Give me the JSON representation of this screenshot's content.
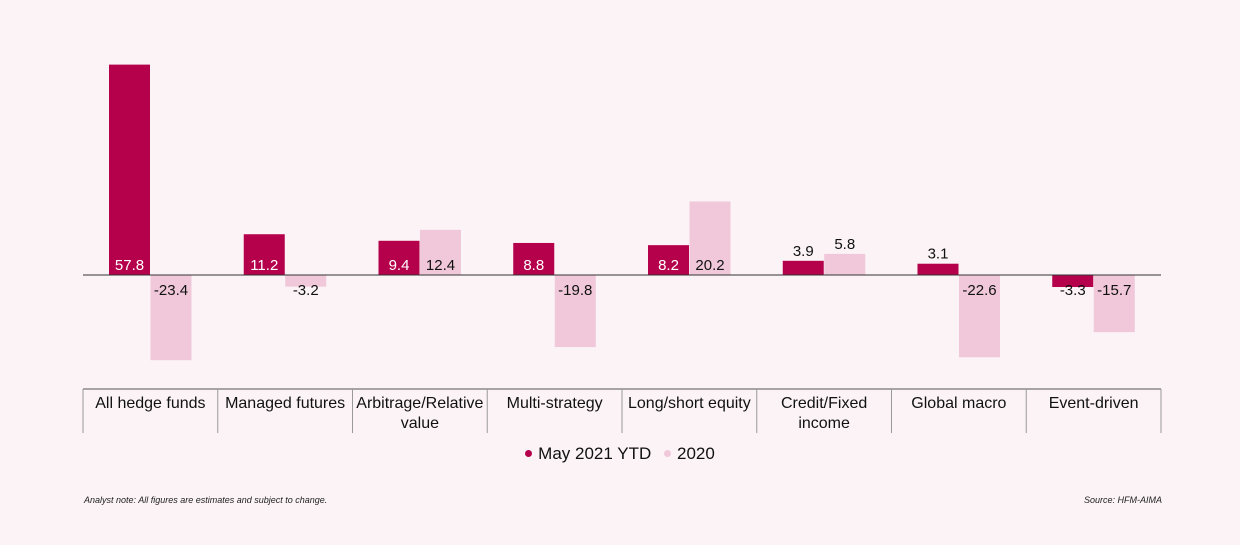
{
  "chart_data": {
    "type": "bar",
    "categories": [
      "All hedge funds",
      "Managed futures",
      "Arbitrage/Relative value",
      "Multi-strategy",
      "Long/short equity",
      "Credit/Fixed income",
      "Global macro",
      "Event-driven"
    ],
    "series": [
      {
        "name": "May 2021 YTD",
        "color": "#b5004b",
        "values": [
          57.8,
          11.2,
          9.4,
          8.8,
          8.2,
          3.9,
          3.1,
          -3.3
        ]
      },
      {
        "name": "2020",
        "color": "#f0c8d9",
        "values": [
          -23.4,
          -3.2,
          12.4,
          -19.8,
          20.2,
          5.8,
          -22.6,
          -15.7
        ]
      }
    ],
    "data_labels": {
      "series_0": [
        "57.8",
        "11.2",
        "9.4",
        "8.8",
        "8.2",
        "3.9",
        "3.1",
        "-3.3"
      ],
      "series_1": [
        "-23.4",
        "-3.2",
        "12.4",
        "-19.8",
        "20.2",
        "5.8",
        "-22.6",
        "-15.7"
      ]
    },
    "legend_position": "bottom-center",
    "grid": false,
    "ylim": [
      -30,
      60
    ]
  },
  "footer": {
    "note": "Analyst note: All figures are estimates and subject to change.",
    "source": "Source: HFM-AIMA"
  }
}
